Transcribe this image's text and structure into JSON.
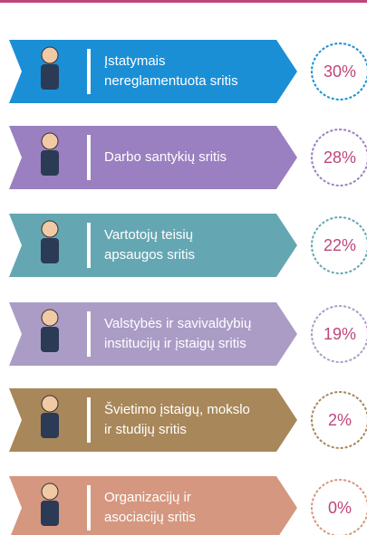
{
  "items": [
    {
      "lines": [
        "Įstatymais",
        "nereglamentuota sritis"
      ],
      "value": "30%",
      "color": "#1b8fd6"
    },
    {
      "lines": [
        "Darbo santykių sritis"
      ],
      "value": "28%",
      "color": "#9a80c0"
    },
    {
      "lines": [
        "Vartotojų teisių",
        "apsaugos sritis"
      ],
      "value": "22%",
      "color": "#64a7b3"
    },
    {
      "lines": [
        "Valstybės ir savivaldybių",
        "institucijų ir įstaigų sritis"
      ],
      "value": "19%",
      "color": "#ab9cc6"
    },
    {
      "lines": [
        "Švietimo įstaigų, mokslo",
        "ir studijų sritis"
      ],
      "value": "2%",
      "color": "#a8875a"
    },
    {
      "lines": [
        "Organizacijų ir",
        "asociacijų sritis"
      ],
      "value": "0%",
      "color": "#d5977f"
    }
  ]
}
